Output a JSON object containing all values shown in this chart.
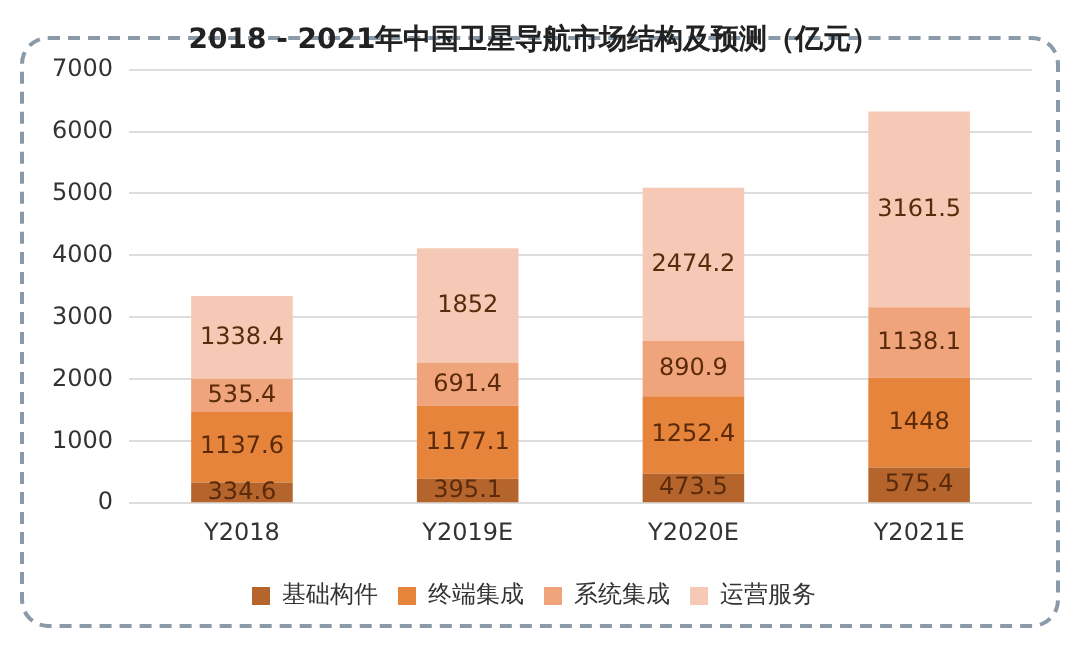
{
  "chart_data": {
    "type": "bar",
    "title": "2018 - 2021年中国卫星导航市场结构及预测（亿元）",
    "categories": [
      "Y2018",
      "Y2019E",
      "Y2020E",
      "Y2021E"
    ],
    "stacked": true,
    "data_labels": true,
    "grid": "y",
    "legend": "bottom",
    "ylim": [
      0,
      7000
    ],
    "yticks": [
      0,
      1000,
      2000,
      3000,
      4000,
      5000,
      6000,
      7000
    ],
    "series": [
      {
        "name": "基础构件",
        "color": "#b5652b",
        "values": [
          334.6,
          395.1,
          473.5,
          575.4
        ]
      },
      {
        "name": "终端集成",
        "color": "#e5843a",
        "values": [
          1137.6,
          1177.1,
          1252.4,
          1448
        ]
      },
      {
        "name": "系统集成",
        "color": "#efa47c",
        "values": [
          535.4,
          691.4,
          890.9,
          1138.1
        ]
      },
      {
        "name": "运营服务",
        "color": "#f6c9b6",
        "values": [
          1338.4,
          1852,
          2474.2,
          3161.5
        ]
      }
    ]
  }
}
